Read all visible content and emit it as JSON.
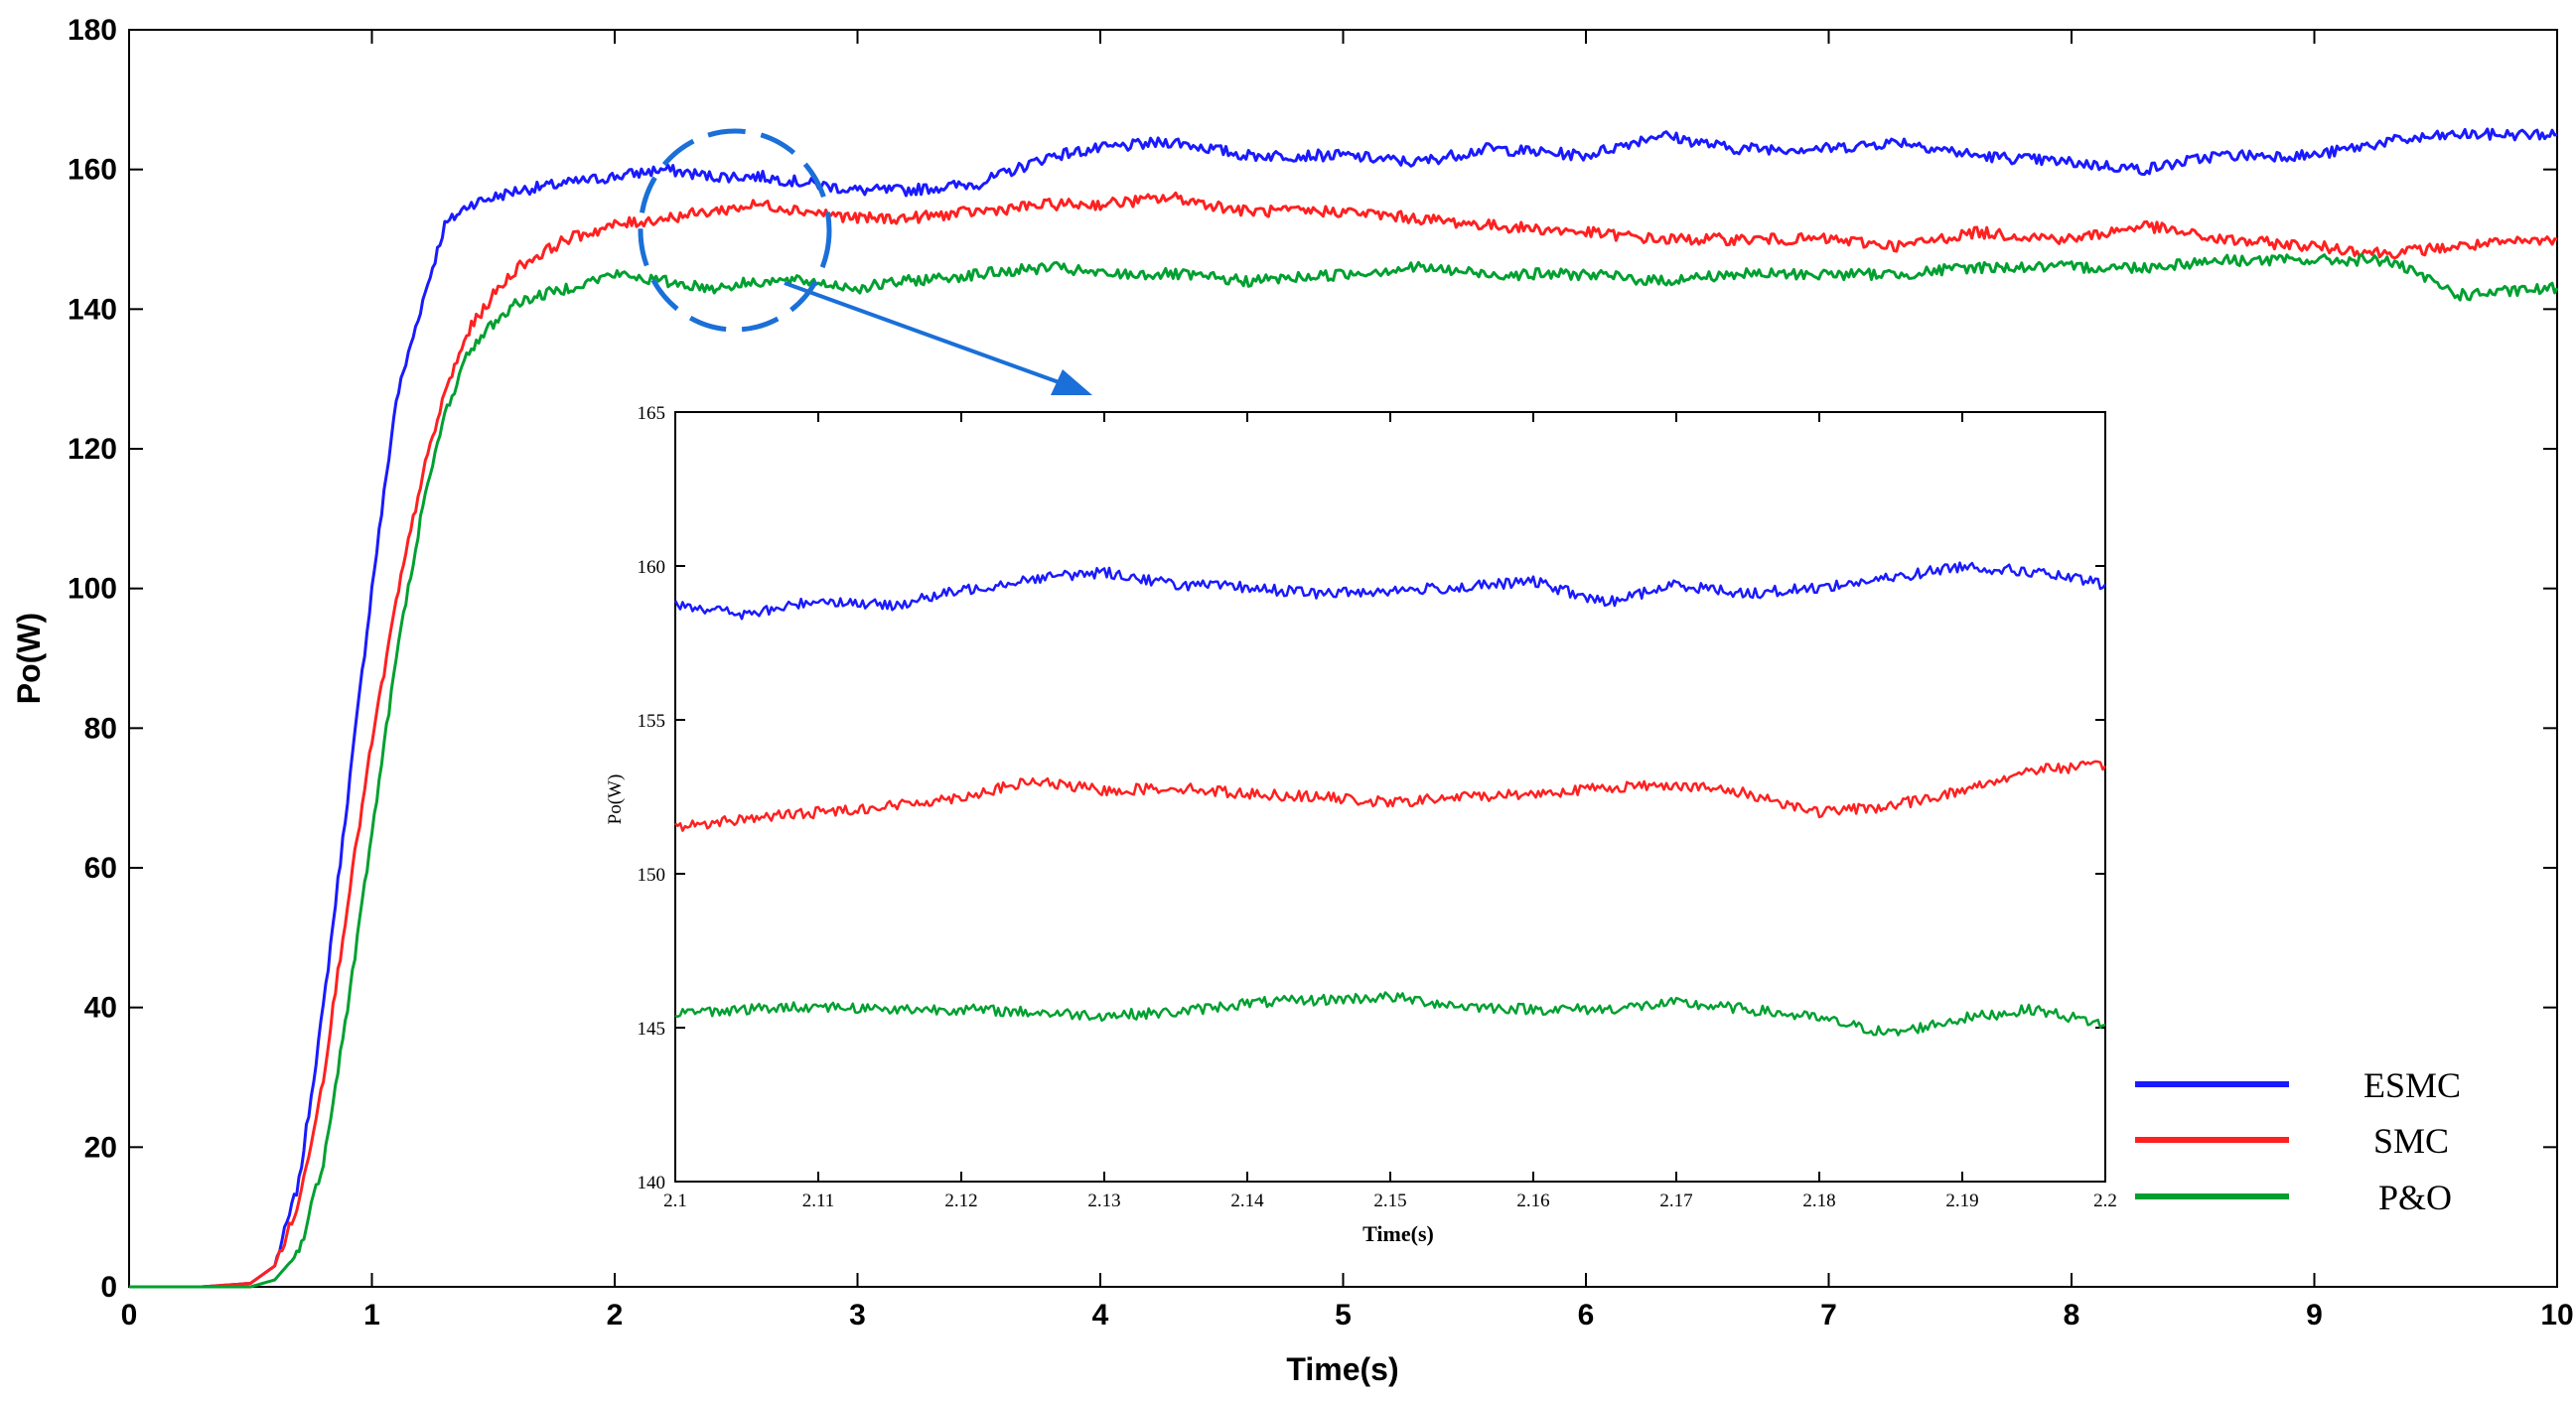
{
  "chart_data": [
    {
      "type": "line",
      "title": "",
      "xlabel": "Time(s)",
      "ylabel": "Po(W)",
      "xlim": [
        0,
        10
      ],
      "ylim": [
        0,
        180
      ],
      "xticks": [
        "0",
        "1",
        "2",
        "3",
        "4",
        "5",
        "6",
        "7",
        "8",
        "9",
        "10"
      ],
      "yticks": [
        "0",
        "20",
        "40",
        "60",
        "80",
        "100",
        "120",
        "140",
        "160",
        "180"
      ],
      "grid": false,
      "legend": "right",
      "series": [
        {
          "name": "ESMC",
          "color": "#1a1aff",
          "x": [
            0,
            0.3,
            0.5,
            0.6,
            0.7,
            0.8,
            0.9,
            1.0,
            1.1,
            1.2,
            1.3,
            1.4,
            1.5,
            1.6,
            1.8,
            2.0,
            2.2,
            2.4,
            2.6,
            2.8,
            3.0,
            3.2,
            3.5,
            3.8,
            4.0,
            4.3,
            4.6,
            5.0,
            5.3,
            5.6,
            6.0,
            6.3,
            6.6,
            7.0,
            7.3,
            7.6,
            8.0,
            8.3,
            8.6,
            9.0,
            9.3,
            9.6,
            10.0
          ],
          "y": [
            0,
            0,
            0.5,
            3,
            15,
            40,
            70,
            100,
            127,
            140,
            152,
            155,
            156,
            157,
            158,
            159,
            160,
            159,
            159,
            158,
            157,
            157,
            158,
            162,
            163,
            164,
            162,
            162,
            161,
            163,
            162,
            165,
            163,
            163,
            164,
            162,
            161,
            160,
            162,
            162,
            164,
            165,
            165
          ]
        },
        {
          "name": "SMC",
          "color": "#ff2020",
          "x": [
            0,
            0.3,
            0.5,
            0.6,
            0.7,
            0.8,
            0.9,
            1.0,
            1.1,
            1.2,
            1.3,
            1.4,
            1.5,
            1.6,
            1.8,
            2.0,
            2.2,
            2.4,
            2.6,
            2.8,
            3.0,
            3.2,
            3.5,
            3.8,
            4.0,
            4.3,
            4.6,
            5.0,
            5.3,
            5.6,
            6.0,
            6.3,
            6.6,
            7.0,
            7.3,
            7.6,
            8.0,
            8.3,
            8.6,
            9.0,
            9.3,
            9.6,
            10.0
          ],
          "y": [
            0,
            0,
            0.5,
            3,
            12,
            30,
            55,
            78,
            98,
            115,
            128,
            137,
            142,
            146,
            150,
            152,
            153,
            154,
            155,
            154,
            153,
            153,
            154,
            155,
            155,
            156,
            154,
            154,
            153,
            152,
            151,
            150,
            150,
            150,
            149,
            151,
            150,
            152,
            150,
            149,
            148,
            149,
            150
          ]
        },
        {
          "name": "P&O",
          "color": "#00a030",
          "x": [
            0,
            0.3,
            0.5,
            0.6,
            0.7,
            0.8,
            0.9,
            1.0,
            1.1,
            1.2,
            1.3,
            1.4,
            1.5,
            1.6,
            1.8,
            2.0,
            2.2,
            2.4,
            2.6,
            2.8,
            3.0,
            3.2,
            3.5,
            3.8,
            4.0,
            4.3,
            4.6,
            5.0,
            5.3,
            5.6,
            6.0,
            6.3,
            6.6,
            7.0,
            7.3,
            7.6,
            8.0,
            8.3,
            8.6,
            9.0,
            9.3,
            9.6,
            10.0
          ],
          "y": [
            0,
            0,
            0,
            1,
            5,
            18,
            40,
            65,
            90,
            110,
            125,
            134,
            138,
            141,
            143,
            145,
            144,
            143,
            144,
            144,
            143,
            144,
            145,
            146,
            145,
            145,
            144,
            145,
            146,
            145,
            145,
            144,
            145,
            145,
            145,
            146,
            146,
            146,
            147,
            147,
            147,
            142,
            143
          ]
        }
      ]
    },
    {
      "type": "line",
      "title": "",
      "xlabel": "Time(s)",
      "ylabel": "Po(W)",
      "xlim": [
        2.1,
        2.2
      ],
      "ylim": [
        140,
        165
      ],
      "xticks": [
        "2.1",
        "2.11",
        "2.12",
        "2.13",
        "2.14",
        "2.15",
        "2.16",
        "2.17",
        "2.18",
        "2.19",
        "2.2"
      ],
      "yticks": [
        "140",
        "145",
        "150",
        "155",
        "160",
        "165"
      ],
      "grid": false,
      "series": [
        {
          "name": "ESMC",
          "color": "#1a1aff",
          "x": [
            2.1,
            2.105,
            2.11,
            2.115,
            2.12,
            2.125,
            2.13,
            2.135,
            2.14,
            2.145,
            2.15,
            2.155,
            2.16,
            2.165,
            2.17,
            2.175,
            2.18,
            2.185,
            2.19,
            2.195,
            2.2
          ],
          "y": [
            158.8,
            158.4,
            158.9,
            158.7,
            159.2,
            159.6,
            159.8,
            159.4,
            159.3,
            159.1,
            159.2,
            159.3,
            159.5,
            158.8,
            159.4,
            159.1,
            159.3,
            159.6,
            160.0,
            159.8,
            159.4
          ]
        },
        {
          "name": "SMC",
          "color": "#ff2020",
          "x": [
            2.1,
            2.105,
            2.11,
            2.115,
            2.12,
            2.125,
            2.13,
            2.135,
            2.14,
            2.145,
            2.15,
            2.155,
            2.16,
            2.165,
            2.17,
            2.175,
            2.18,
            2.185,
            2.19,
            2.195,
            2.2
          ],
          "y": [
            151.5,
            151.8,
            152.0,
            152.2,
            152.5,
            153.0,
            152.7,
            152.8,
            152.6,
            152.5,
            152.3,
            152.5,
            152.6,
            152.8,
            152.9,
            152.6,
            152.0,
            152.2,
            152.7,
            153.4,
            153.5
          ]
        },
        {
          "name": "P&O",
          "color": "#00a030",
          "x": [
            2.1,
            2.105,
            2.11,
            2.115,
            2.12,
            2.125,
            2.13,
            2.135,
            2.14,
            2.145,
            2.15,
            2.155,
            2.16,
            2.165,
            2.17,
            2.175,
            2.18,
            2.185,
            2.19,
            2.195,
            2.2
          ],
          "y": [
            145.5,
            145.6,
            145.7,
            145.6,
            145.6,
            145.5,
            145.4,
            145.5,
            145.8,
            145.9,
            146.0,
            145.7,
            145.6,
            145.6,
            145.8,
            145.6,
            145.3,
            144.8,
            145.3,
            145.6,
            145.1
          ]
        }
      ]
    }
  ]
}
